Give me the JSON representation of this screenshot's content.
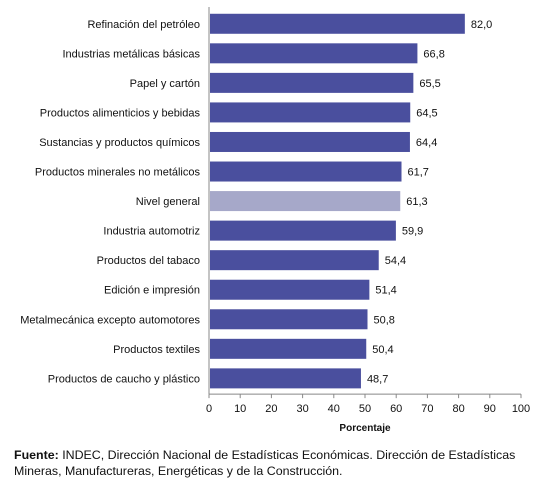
{
  "chart_data": {
    "type": "bar",
    "orientation": "horizontal",
    "categories": [
      "Refinación del petróleo",
      "Industrias metálicas básicas",
      "Papel y cartón",
      "Productos alimenticios y bebidas",
      "Sustancias y productos químicos",
      "Productos minerales no metálicos",
      "Nivel general",
      "Industria automotriz",
      "Productos del tabaco",
      "Edición e impresión",
      "Metalmecánica excepto automotores",
      "Productos textiles",
      "Productos de caucho y plástico"
    ],
    "values": [
      82.0,
      66.8,
      65.5,
      64.5,
      64.4,
      61.7,
      61.3,
      59.9,
      54.4,
      51.4,
      50.8,
      50.4,
      48.7
    ],
    "value_labels": [
      "82,0",
      "66,8",
      "65,5",
      "64,5",
      "64,4",
      "61,7",
      "61,3",
      "59,9",
      "54,4",
      "51,4",
      "50,8",
      "50,4",
      "48,7"
    ],
    "highlight_category": "Nivel general",
    "xlabel": "Porcentaje",
    "xlim": [
      0,
      100
    ],
    "xticks": [
      0,
      10,
      20,
      30,
      40,
      50,
      60,
      70,
      80,
      90,
      100
    ],
    "grid": false,
    "legend": "none",
    "colors": {
      "bar": "#4a4f9e",
      "highlight": "#a6a8c9",
      "axis": "#888888"
    }
  },
  "source": {
    "label": "Fuente:",
    "text": " INDEC, Dirección Nacional de Estadísticas Económicas. Dirección de Estadísticas Mineras, Manufactureras, Energéticas y de la Construcción."
  }
}
